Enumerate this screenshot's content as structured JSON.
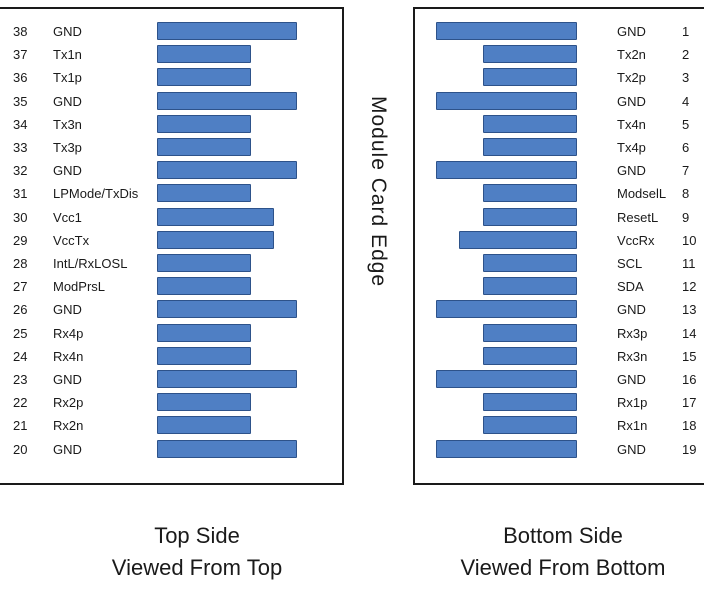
{
  "edge_label": "Module Card Edge",
  "top_side": {
    "caption_line1": "Top Side",
    "caption_line2": "Viewed From Top",
    "pins": [
      {
        "num": "38",
        "name": "GND",
        "pad": "long"
      },
      {
        "num": "37",
        "name": "Tx1n",
        "pad": "short"
      },
      {
        "num": "36",
        "name": "Tx1p",
        "pad": "short"
      },
      {
        "num": "35",
        "name": "GND",
        "pad": "long"
      },
      {
        "num": "34",
        "name": "Tx3n",
        "pad": "short"
      },
      {
        "num": "33",
        "name": "Tx3p",
        "pad": "short"
      },
      {
        "num": "32",
        "name": "GND",
        "pad": "long"
      },
      {
        "num": "31",
        "name": "LPMode/TxDis",
        "pad": "short"
      },
      {
        "num": "30",
        "name": "Vcc1",
        "pad": "medium"
      },
      {
        "num": "29",
        "name": "VccTx",
        "pad": "medium"
      },
      {
        "num": "28",
        "name": "IntL/RxLOSL",
        "pad": "short"
      },
      {
        "num": "27",
        "name": "ModPrsL",
        "pad": "short"
      },
      {
        "num": "26",
        "name": "GND",
        "pad": "long"
      },
      {
        "num": "25",
        "name": "Rx4p",
        "pad": "short"
      },
      {
        "num": "24",
        "name": "Rx4n",
        "pad": "short"
      },
      {
        "num": "23",
        "name": "GND",
        "pad": "long"
      },
      {
        "num": "22",
        "name": "Rx2p",
        "pad": "short"
      },
      {
        "num": "21",
        "name": "Rx2n",
        "pad": "short"
      },
      {
        "num": "20",
        "name": "GND",
        "pad": "long"
      }
    ]
  },
  "bottom_side": {
    "caption_line1": "Bottom Side",
    "caption_line2": "Viewed From Bottom",
    "pins": [
      {
        "num": "1",
        "name": "GND",
        "pad": "long"
      },
      {
        "num": "2",
        "name": "Tx2n",
        "pad": "short"
      },
      {
        "num": "3",
        "name": "Tx2p",
        "pad": "short"
      },
      {
        "num": "4",
        "name": "GND",
        "pad": "long"
      },
      {
        "num": "5",
        "name": "Tx4n",
        "pad": "short"
      },
      {
        "num": "6",
        "name": "Tx4p",
        "pad": "short"
      },
      {
        "num": "7",
        "name": "GND",
        "pad": "long"
      },
      {
        "num": "8",
        "name": "ModselL",
        "pad": "short"
      },
      {
        "num": "9",
        "name": "ResetL",
        "pad": "short"
      },
      {
        "num": "10",
        "name": "VccRx",
        "pad": "medium"
      },
      {
        "num": "11",
        "name": "SCL",
        "pad": "short"
      },
      {
        "num": "12",
        "name": "SDA",
        "pad": "short"
      },
      {
        "num": "13",
        "name": "GND",
        "pad": "long"
      },
      {
        "num": "14",
        "name": "Rx3p",
        "pad": "short"
      },
      {
        "num": "15",
        "name": "Rx3n",
        "pad": "short"
      },
      {
        "num": "16",
        "name": "GND",
        "pad": "long"
      },
      {
        "num": "17",
        "name": "Rx1p",
        "pad": "short"
      },
      {
        "num": "18",
        "name": "Rx1n",
        "pad": "short"
      },
      {
        "num": "19",
        "name": "GND",
        "pad": "long"
      }
    ]
  },
  "colors": {
    "pad_fill": "#4f7fc4",
    "pad_border": "#2d528a",
    "outline": "#1a1a1a"
  }
}
